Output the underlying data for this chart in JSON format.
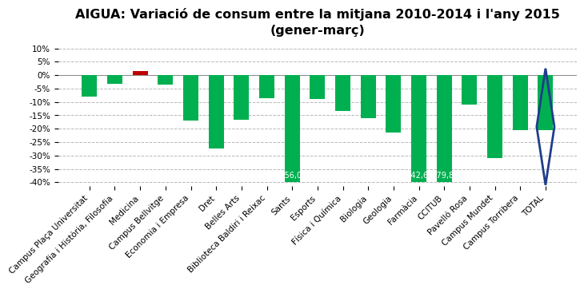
{
  "title_line1": "AIGUA: Variació de consum entre la mitjana 2010-2014 i l'any 2015",
  "title_line2": "(gener-març)",
  "categories": [
    "Campus Plaça Universitat",
    "Geografia i Història, Filosofia",
    "Medicina",
    "Campus Bellvitge",
    "Economia i Empresa",
    "Dret",
    "Belles Arts",
    "Biblioteca Baldiri i Reixac",
    "Sants",
    "Esports",
    "Física i Química",
    "Biologia",
    "Geologia",
    "Farmàcia",
    "CCITUB",
    "Pavelló Rosa",
    "Campus Mundet",
    "Campus Torribera",
    "TOTAL"
  ],
  "values": [
    -8.0,
    -3.2,
    1.5,
    -3.5,
    -17.0,
    -27.5,
    -16.5,
    -8.5,
    -40.0,
    -9.0,
    -13.5,
    -16.0,
    -21.5,
    -40.0,
    -40.0,
    -11.0,
    -31.0,
    -20.5,
    -20.5
  ],
  "actual_values_for_labels": {
    "8": "-56,0",
    "13": "-42,6",
    "14": "-79,8"
  },
  "colors": [
    "#00b050",
    "#00b050",
    "#c00000",
    "#00b050",
    "#00b050",
    "#00b050",
    "#00b050",
    "#00b050",
    "#00b050",
    "#00b050",
    "#00b050",
    "#00b050",
    "#00b050",
    "#00b050",
    "#00b050",
    "#00b050",
    "#00b050",
    "#00b050",
    "#00b050"
  ],
  "ylim_min": -41.5,
  "ylim_max": 12.0,
  "yticks": [
    10,
    5,
    0,
    -5,
    -10,
    -15,
    -20,
    -25,
    -30,
    -35,
    -40
  ],
  "background_color": "#ffffff",
  "grid_color": "#b8b8b8",
  "title_fontsize": 11.5,
  "tick_fontsize": 7.5,
  "bar_label_fontsize": 7.0,
  "bar_width": 0.6,
  "diamond_color": "#1f3d8a"
}
